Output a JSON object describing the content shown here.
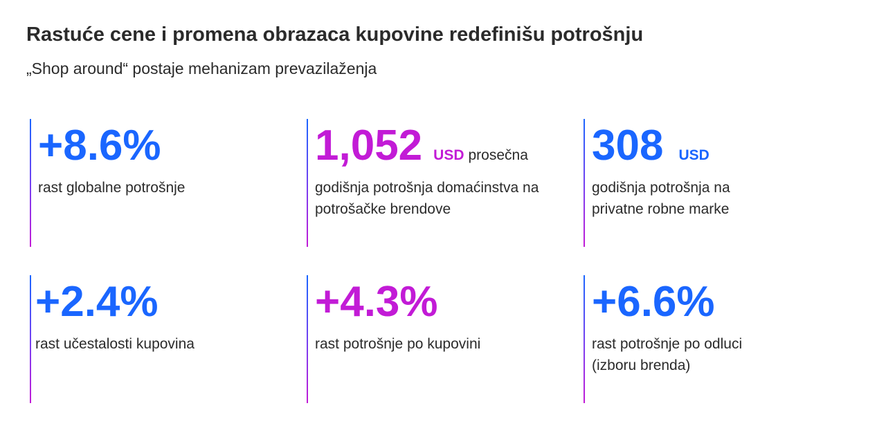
{
  "header": {
    "title": "Rastuće cene i promena obrazaca kupovine redefinišu potrošnju",
    "subtitle": "„Shop around“ postaje mehanizam prevazilaženja"
  },
  "colors": {
    "blue": "#1a66ff",
    "magenta": "#c21bd6",
    "text": "#2b2b2b"
  },
  "stats": [
    {
      "value": "+8.6%",
      "unit": "",
      "tail": "",
      "desc_line1": "rast globalne potrošnje",
      "desc_line2": "",
      "color": "blue"
    },
    {
      "value": "1,052",
      "unit": "USD",
      "tail": "prosečna",
      "desc_line1": "godišnja potrošnja domaćinstva na",
      "desc_line2": "potrošačke brendove",
      "color": "magenta"
    },
    {
      "value": "308",
      "unit": "USD",
      "tail": "",
      "desc_line1": "godišnja potrošnja na",
      "desc_line2": "privatne robne marke",
      "color": "blue"
    },
    {
      "value": "+2.4%",
      "unit": "",
      "tail": "",
      "desc_line1": "rast učestalosti kupovina",
      "desc_line2": "",
      "color": "blue"
    },
    {
      "value": "+4.3%",
      "unit": "",
      "tail": "",
      "desc_line1": "rast potrošnje po kupovini",
      "desc_line2": "",
      "color": "magenta"
    },
    {
      "value": "+6.6%",
      "unit": "",
      "tail": "",
      "desc_line1": "rast potrošnje po odluci",
      "desc_line2": "(izboru brenda)",
      "color": "blue"
    }
  ]
}
